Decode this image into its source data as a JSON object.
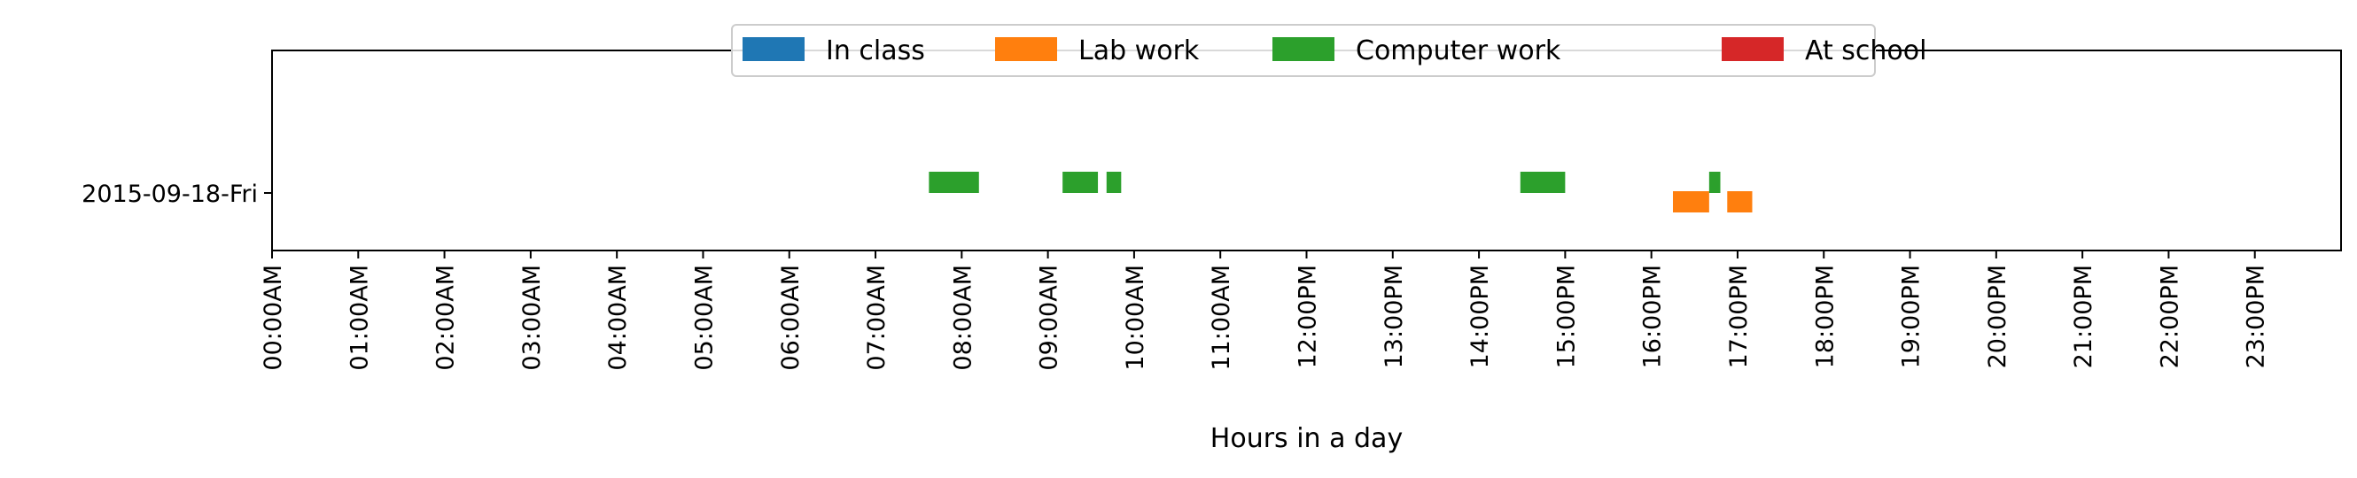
{
  "chart_data": {
    "type": "timeline",
    "title": "",
    "xlabel": "Hours in a day",
    "ylabel": "",
    "xlim": [
      0,
      24
    ],
    "x_ticks": [
      "00:00AM",
      "01:00AM",
      "02:00AM",
      "03:00AM",
      "04:00AM",
      "05:00AM",
      "06:00AM",
      "07:00AM",
      "08:00AM",
      "09:00AM",
      "10:00AM",
      "11:00AM",
      "12:00PM",
      "13:00PM",
      "14:00PM",
      "15:00PM",
      "16:00PM",
      "17:00PM",
      "18:00PM",
      "19:00PM",
      "20:00PM",
      "21:00PM",
      "22:00PM",
      "23:00PM"
    ],
    "categories": [
      "2015-09-18-Fri"
    ],
    "legend_position": "top-center",
    "grid": false,
    "series": [
      {
        "name": "In class",
        "color": "#1f77b4",
        "intervals": []
      },
      {
        "name": "Lab work",
        "color": "#ff7f0e",
        "intervals": [
          [
            16.25,
            16.67
          ],
          [
            16.88,
            17.17
          ]
        ]
      },
      {
        "name": "Computer work",
        "color": "#2ca02c",
        "intervals": [
          [
            7.62,
            8.2
          ],
          [
            9.17,
            9.58
          ],
          [
            9.68,
            9.85
          ],
          [
            14.48,
            15.0
          ],
          [
            16.67,
            16.8
          ]
        ]
      },
      {
        "name": "At school",
        "color": "#d62728",
        "intervals": []
      }
    ]
  }
}
